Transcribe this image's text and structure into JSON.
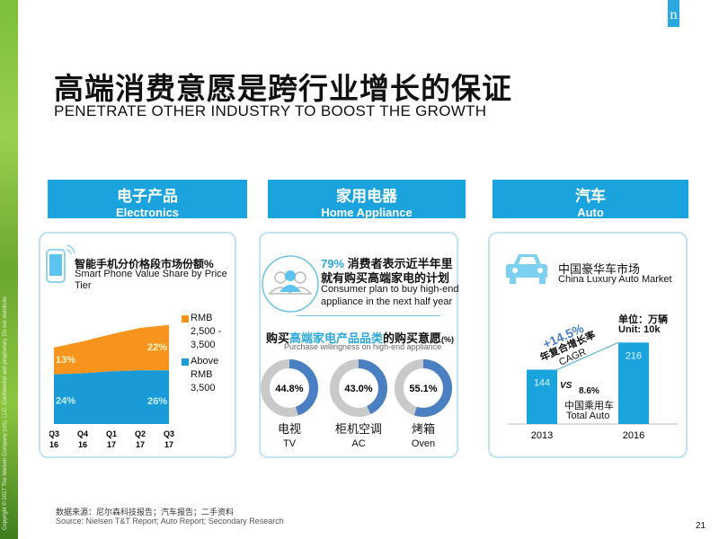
{
  "sidebar": {
    "copyright": "Copyright © 2017 The Nielsen Company (US), LLC. Confidential and proprietary. Do not distribute"
  },
  "logo": "n",
  "title": "高端消费意愿是跨行业增长的保证",
  "subtitle": "PENETRATE OTHER INDUSTRY TO BOOST THE GROWTH",
  "sections": [
    {
      "cn": "电子产品",
      "en": "Electronics"
    },
    {
      "cn": "家用电器",
      "en": "Home Appliance"
    },
    {
      "cn": "汽车",
      "en": "Auto"
    }
  ],
  "electronics": {
    "title_cn": "智能手机分价格段市场份额%",
    "title_en": "Smart Phone Value Share by Price Tier",
    "icon": "smartphone-icon",
    "x_labels": [
      [
        "Q3",
        "16"
      ],
      [
        "Q4",
        "16"
      ],
      [
        "Q1",
        "17"
      ],
      [
        "Q2",
        "17"
      ],
      [
        "Q3",
        "17"
      ]
    ],
    "series": [
      {
        "name": "Above RMB 3,500",
        "color": "#1a9ad6",
        "values": [
          24,
          24.5,
          25.5,
          26,
          26
        ],
        "labels": {
          "first": "24%",
          "last": "26%"
        }
      },
      {
        "name": "RMB 2,500 - 3,500",
        "color": "#f7941d",
        "values": [
          13,
          15.5,
          18,
          20.5,
          22
        ],
        "labels": {
          "first": "13%",
          "last": "22%"
        }
      }
    ],
    "legend": [
      {
        "lines": [
          "RMB",
          "2,500 -",
          "3,500"
        ],
        "color": "#f7941d"
      },
      {
        "lines": [
          "Above",
          "RMB",
          "3,500"
        ],
        "color": "#1a9ad6"
      }
    ]
  },
  "home": {
    "icon": "people-icon",
    "pct": "79%",
    "line1": " 消费者表示近半年里",
    "line2": "就有购买高端家电的计划",
    "en1": "Consumer plan to buy high-end",
    "en2": "appliance in the next half year",
    "title_a": "购买",
    "title_b": "高端家电产品品类",
    "title_c": "的购买意愿",
    "title_unit": "(%)",
    "title_en": "Purchase willingness on high-end appliance",
    "donuts": [
      {
        "value": 44.8,
        "label": "44.8%",
        "cn": "电视",
        "en": "TV"
      },
      {
        "value": 43.0,
        "label": "43.0%",
        "cn": "柜机空调",
        "en": "AC"
      },
      {
        "value": 55.1,
        "label": "55.1%",
        "cn": "烤箱",
        "en": "Oven"
      }
    ],
    "colors": {
      "fill": "#4a7fc1",
      "rest": "#c9c9c9"
    }
  },
  "auto": {
    "icon": "car-icon",
    "title_cn": "中国豪华车市场",
    "title_en": "China Luxury Auto Market",
    "unit_cn": "单位：万辆",
    "unit_en": "Unit: 10k",
    "bars": [
      {
        "year": "2013",
        "value": 144,
        "label": "144"
      },
      {
        "year": "2016",
        "value": 216,
        "label": "216"
      }
    ],
    "cagr": "+14.5%",
    "cagr_cn": "年复合增长率",
    "cagr_en": "CAGR",
    "vs": "VS",
    "total_pct": "8.6%",
    "total_cn": "中国乘用车",
    "total_en": "Total Auto",
    "color": "#1ba3de"
  },
  "footer": {
    "source_cn": "数据来源：尼尔森科技报告；汽车报告；二手资料",
    "source_en": "Source: Nielsen T&T Report; Auto Report; Secondary Research",
    "page": "21"
  }
}
